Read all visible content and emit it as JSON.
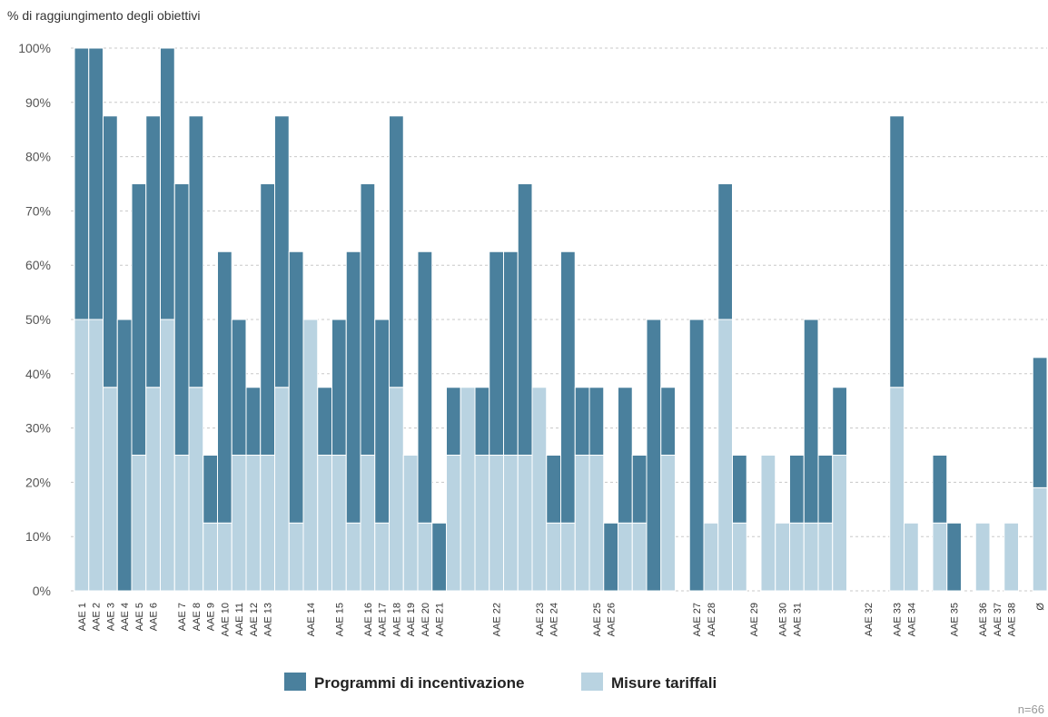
{
  "chart_data": {
    "type": "stacked_bar",
    "y_label": "% di raggiungimento degli obiettivi",
    "note": "n=66",
    "categories": [
      "AAE 1",
      "AAE 2",
      "AAE 3",
      "AAE 4",
      "AAE 5",
      "AAE 6",
      null,
      "AAE 7",
      "AAE 8",
      "AAE 9",
      "AAE 10",
      "AAE 11",
      "AAE 12",
      "AAE 13",
      null,
      null,
      "AAE 14",
      null,
      "AAE 15",
      null,
      "AAE 16",
      "AAE 17",
      "AAE 18",
      "AAE 19",
      "AAE 20",
      "AAE 21",
      null,
      null,
      null,
      "AAE 22",
      null,
      null,
      "AAE 23",
      "AAE 24",
      null,
      null,
      "AAE 25",
      "AAE 26",
      null,
      null,
      null,
      null,
      null,
      "AAE 27",
      "AAE 28",
      null,
      null,
      "AAE 29",
      null,
      "AAE 30",
      "AAE 31",
      null,
      null,
      null,
      null,
      "AAE 32",
      null,
      "AAE 33",
      "AAE 34",
      null,
      null,
      "AAE 35",
      null,
      "AAE 36",
      "AAE 37",
      "AAE 38",
      null,
      "Ø"
    ],
    "series": [
      {
        "name": "Misure tariffali",
        "color": "#b9d3e1",
        "values": [
          50,
          50,
          37.5,
          0,
          25,
          37.5,
          50,
          25,
          37.5,
          12.5,
          12.5,
          25,
          25,
          25,
          37.5,
          12.5,
          50,
          25,
          25,
          12.5,
          25,
          12.5,
          37.5,
          25,
          12.5,
          0,
          25,
          37.5,
          25,
          25,
          25,
          25,
          37.5,
          12.5,
          12.5,
          25,
          25,
          0,
          12.5,
          12.5,
          0,
          25,
          0,
          0,
          12.5,
          50,
          12.5,
          0,
          25,
          12.5,
          12.5,
          12.5,
          12.5,
          25,
          0,
          0,
          0,
          37.5,
          12.5,
          0,
          12.5,
          0,
          0,
          12.5,
          0,
          12.5,
          0,
          19
        ]
      },
      {
        "name": "Programmi di incentivazione",
        "color": "#4a809d",
        "values": [
          50,
          50,
          50,
          50,
          50,
          50,
          50,
          50,
          50,
          12.5,
          50,
          25,
          12.5,
          50,
          50,
          50,
          0,
          12.5,
          25,
          50,
          50,
          37.5,
          50,
          0,
          50,
          12.5,
          12.5,
          0,
          12.5,
          37.5,
          37.5,
          50,
          0,
          12.5,
          50,
          12.5,
          12.5,
          12.5,
          25,
          12.5,
          50,
          12.5,
          0,
          50,
          0,
          25,
          12.5,
          0,
          0,
          0,
          12.5,
          37.5,
          12.5,
          12.5,
          0,
          0,
          0,
          50,
          0,
          0,
          12.5,
          12.5,
          0,
          0,
          0,
          0,
          0,
          24
        ]
      }
    ],
    "legend_order": [
      1,
      0
    ],
    "ylim": [
      0,
      100
    ],
    "yticks": [
      {
        "value": 0,
        "label": "0%"
      },
      {
        "value": 10,
        "label": "10%"
      },
      {
        "value": 20,
        "label": "20%"
      },
      {
        "value": 30,
        "label": "30%"
      },
      {
        "value": 40,
        "label": "40%"
      },
      {
        "value": 50,
        "label": "50%"
      },
      {
        "value": 60,
        "label": "60%"
      },
      {
        "value": 70,
        "label": "70%"
      },
      {
        "value": 80,
        "label": "80%"
      },
      {
        "value": 90,
        "label": "90%"
      },
      {
        "value": 100,
        "label": "100%"
      }
    ],
    "grid": true
  }
}
